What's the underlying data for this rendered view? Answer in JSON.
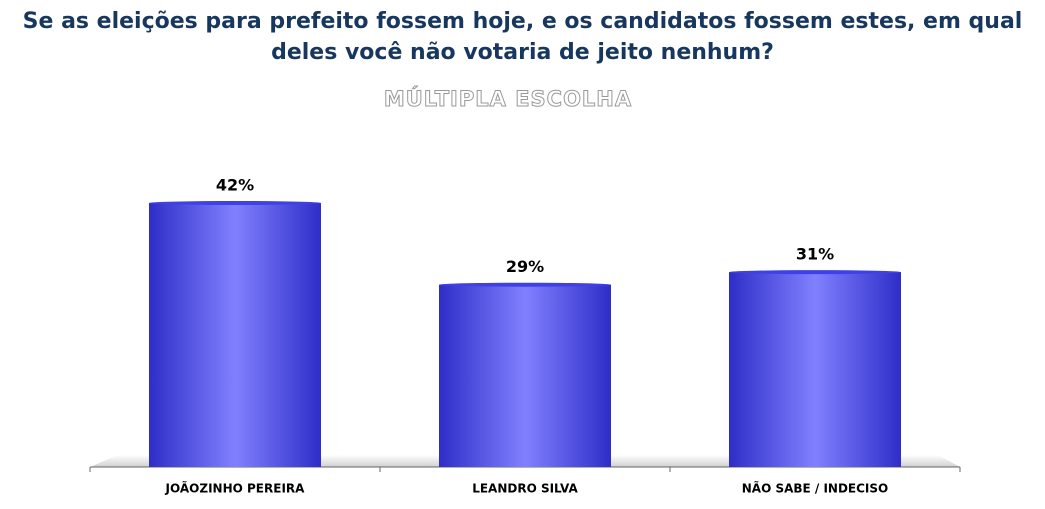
{
  "chart_data": {
    "type": "bar",
    "title": "Se as eleições para prefeito fossem hoje, e os candidatos fossem estes, em qual deles você não votaria de jeito nenhum?",
    "subtitle": "MÚLTIPLA ESCOLHA",
    "categories": [
      "JOÃOZINHO PEREIRA",
      "LEANDRO SILVA",
      "NÃO SABE / INDECISO"
    ],
    "values": [
      42,
      29,
      31
    ],
    "value_labels": [
      "42%",
      "29%",
      "31%"
    ],
    "color": "#4040e8"
  }
}
